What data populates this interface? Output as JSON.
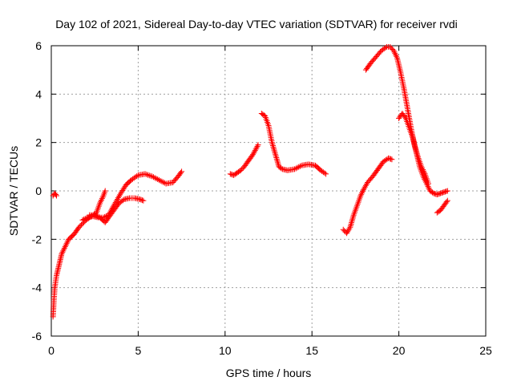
{
  "chart_data": {
    "type": "scatter",
    "title": "Day 102 of 2021, Sidereal Day-to-day VTEC variation (SDTVAR) for receiver rvdi",
    "xlabel": "GPS time / hours",
    "ylabel": "SDTVAR / TECUs",
    "xlim": [
      0,
      25
    ],
    "ylim": [
      -6,
      6
    ],
    "xticks": [
      0,
      5,
      10,
      15,
      20,
      25
    ],
    "yticks": [
      -6,
      -4,
      -2,
      0,
      2,
      4,
      6
    ],
    "grid": true,
    "marker": "+",
    "color": "#ff0000",
    "series": [
      {
        "x": [
          0.1,
          0.2,
          0.3,
          0.25
        ],
        "y": [
          -0.2,
          -0.1,
          -0.2,
          -0.15
        ]
      },
      {
        "x": [
          0.1,
          0.15,
          0.2,
          0.3,
          0.4,
          0.5,
          0.6,
          0.8,
          1.0,
          1.3,
          1.6,
          1.8,
          2.0,
          2.2,
          2.4,
          2.6,
          2.8,
          3.0,
          3.1
        ],
        "y": [
          -5.2,
          -4.5,
          -4.0,
          -3.5,
          -3.2,
          -2.9,
          -2.6,
          -2.3,
          -2.0,
          -1.8,
          -1.5,
          -1.35,
          -1.2,
          -1.1,
          -1.0,
          -0.9,
          -0.5,
          -0.2,
          0.0
        ]
      },
      {
        "x": [
          1.8,
          2.1,
          2.4,
          2.7,
          3.0,
          3.3,
          3.6,
          4.0,
          4.3,
          4.6,
          5.0,
          5.4,
          5.8,
          6.2,
          6.6,
          7.0,
          7.3,
          7.5
        ],
        "y": [
          -1.2,
          -1.1,
          -1.05,
          -1.1,
          -1.1,
          -1.0,
          -0.6,
          -0.1,
          0.25,
          0.45,
          0.65,
          0.7,
          0.6,
          0.45,
          0.3,
          0.35,
          0.6,
          0.8
        ]
      },
      {
        "x": [
          2.2,
          2.5,
          2.8,
          3.1,
          3.3,
          3.6,
          3.9,
          4.2,
          4.5,
          4.8,
          5.1,
          5.3
        ],
        "y": [
          -1.0,
          -1.0,
          -1.1,
          -1.3,
          -1.1,
          -0.8,
          -0.5,
          -0.35,
          -0.3,
          -0.3,
          -0.35,
          -0.4
        ]
      },
      {
        "x": [
          10.3,
          10.5,
          10.7,
          10.9,
          11.1,
          11.3,
          11.6,
          11.9
        ],
        "y": [
          0.7,
          0.65,
          0.75,
          0.85,
          1.0,
          1.2,
          1.5,
          1.9
        ]
      },
      {
        "x": [
          12.1,
          12.3,
          12.5,
          12.7,
          12.9,
          13.1,
          13.3,
          13.6,
          14.0,
          14.4,
          14.8,
          15.2,
          15.5,
          15.8
        ],
        "y": [
          3.2,
          3.1,
          2.7,
          2.0,
          1.5,
          1.0,
          0.9,
          0.85,
          0.9,
          1.05,
          1.1,
          1.05,
          0.85,
          0.7
        ]
      },
      {
        "x": [
          16.8,
          17.0,
          17.2,
          17.4,
          17.6,
          17.8,
          18.0,
          18.2,
          18.5,
          18.8,
          19.1,
          19.4,
          19.6
        ],
        "y": [
          -1.6,
          -1.75,
          -1.5,
          -1.0,
          -0.6,
          -0.2,
          0.1,
          0.35,
          0.6,
          0.9,
          1.2,
          1.35,
          1.3
        ]
      },
      {
        "x": [
          18.1,
          18.4,
          18.7,
          19.0,
          19.3,
          19.5,
          19.7,
          19.9,
          20.1,
          20.3,
          20.5,
          20.7,
          20.9,
          21.1,
          21.3,
          21.5,
          21.7
        ],
        "y": [
          5.0,
          5.3,
          5.55,
          5.8,
          5.95,
          5.95,
          5.8,
          5.5,
          4.9,
          4.2,
          3.4,
          2.6,
          1.9,
          1.4,
          1.0,
          0.7,
          0.3
        ]
      },
      {
        "x": [
          20.0,
          20.2,
          20.4,
          20.6,
          20.8,
          21.0,
          21.2,
          21.4,
          21.6,
          21.8,
          22.0,
          22.2,
          22.4,
          22.6,
          22.8
        ],
        "y": [
          3.0,
          3.2,
          3.0,
          2.6,
          2.2,
          1.6,
          1.0,
          0.6,
          0.3,
          0.0,
          -0.1,
          -0.15,
          -0.1,
          -0.05,
          0.0
        ]
      },
      {
        "x": [
          22.2,
          22.4,
          22.6,
          22.8
        ],
        "y": [
          -0.9,
          -0.8,
          -0.6,
          -0.4
        ]
      }
    ]
  }
}
